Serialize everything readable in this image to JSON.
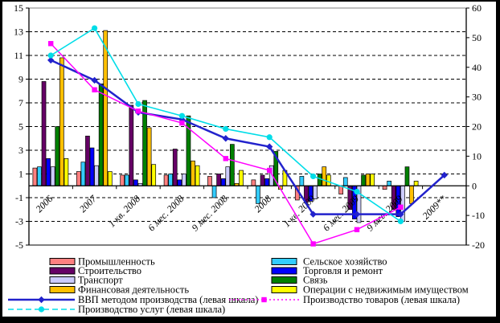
{
  "chart_data": {
    "type": "bar+line combo, dual axis",
    "categories": [
      "2006",
      "2007",
      "1 кв. 2008",
      "6 мес. 2008",
      "9 мес. 2008",
      "2008",
      "1 кв. 2009",
      "6 мес. 2009",
      "9 мес. 2009",
      "2009**"
    ],
    "bar_series": [
      {
        "name": "Промышленность",
        "color": "#FF8080",
        "values": [
          1.5,
          1.2,
          0.9,
          0.9,
          0.8,
          0.5,
          -1.2,
          -0.7,
          -0.3,
          null
        ]
      },
      {
        "name": "Сельское хозяйство",
        "color": "#33CCFF",
        "values": [
          1.6,
          2.0,
          0.9,
          1.0,
          -1.0,
          -1.5,
          0.8,
          0.7,
          0.4,
          null
        ]
      },
      {
        "name": "Строительство",
        "color": "#660066",
        "values": [
          8.8,
          4.2,
          6.8,
          3.1,
          1.0,
          0.9,
          -1.4,
          -2.0,
          -2.0,
          null
        ]
      },
      {
        "name": "Торговля и ремонт",
        "color": "#0000FF",
        "values": [
          2.3,
          3.2,
          0.5,
          0.5,
          0.6,
          0.6,
          -1.3,
          -2.8,
          -2.6,
          null
        ]
      },
      {
        "name": "Транспорт",
        "color": "#CCCCFF",
        "values": [
          1.6,
          1.7,
          0.2,
          1.0,
          1.6,
          1.7,
          -1.1,
          -3.1,
          -3.0,
          null
        ]
      },
      {
        "name": "Связь",
        "color": "#008000",
        "values": [
          5.0,
          8.6,
          7.2,
          5.9,
          3.5,
          2.9,
          1.0,
          0.9,
          1.6,
          null
        ]
      },
      {
        "name": "Финансовая деятельность",
        "color": "#FFC000",
        "values": [
          10.8,
          13.1,
          4.9,
          2.1,
          0.2,
          -0.3,
          1.6,
          1.0,
          -1.5,
          null
        ]
      },
      {
        "name": "Операции с недвижимым имуществом",
        "color": "#FFFF00",
        "values": [
          2.3,
          1.2,
          1.8,
          1.7,
          1.3,
          1.3,
          0.9,
          1.0,
          0.4,
          null
        ]
      }
    ],
    "line_series": [
      {
        "name": "ВВП методом производства (левая шкала)",
        "color": "#2222CC",
        "marker": "diamond",
        "dash": "solid",
        "width": 2.5,
        "values": [
          10.6,
          8.9,
          6.2,
          5.6,
          4.0,
          3.3,
          -2.4,
          -2.4,
          -2.4,
          0.9
        ],
        "dotted_after_index": 8
      },
      {
        "name": "Производство товаров (левая шкала)",
        "color": "#FF00FF",
        "marker": "square",
        "dash": "2 3",
        "width": 1.5,
        "values": [
          12.0,
          8.1,
          6.3,
          5.3,
          2.3,
          1.3,
          -4.9,
          -3.7,
          -1.8,
          null
        ]
      },
      {
        "name": "Производство услуг (левая шкала)",
        "color": "#00DDE8",
        "marker": "circle",
        "dash": "7 4",
        "width": 1.6,
        "values": [
          11.0,
          13.3,
          6.9,
          5.9,
          4.8,
          4.1,
          0.8,
          -0.5,
          -3.0,
          null
        ]
      }
    ],
    "left_axis": {
      "min": -5,
      "max": 15,
      "tick_labels": [
        "15",
        "13",
        "11",
        "9",
        "7",
        "5",
        "3",
        "1",
        "-1",
        "-3",
        "-5"
      ]
    },
    "right_axis": {
      "min": -20,
      "max": 60,
      "tick_labels": [
        "60",
        "50",
        "40",
        "30",
        "20",
        "10",
        "0",
        "-10",
        "-20"
      ]
    },
    "grid": "dashed horizontal lines at odd left-scale values",
    "legend": {
      "left_column": [
        "bar:0",
        "bar:2",
        "bar:4",
        "bar:6",
        "line:0",
        "line:2"
      ],
      "right_column": [
        "bar:1",
        "bar:3",
        "bar:5",
        "bar:7",
        "line:1"
      ]
    }
  }
}
